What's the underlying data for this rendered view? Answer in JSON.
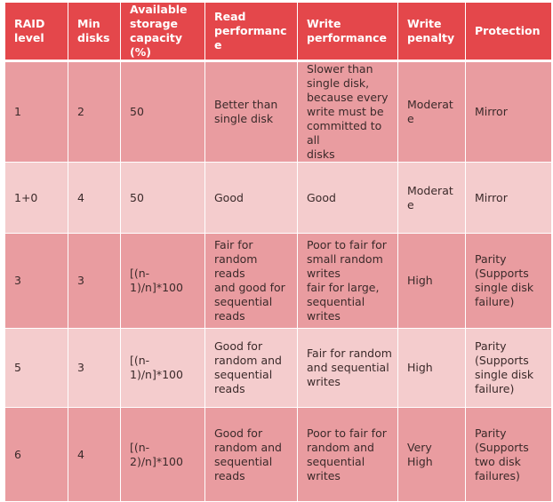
{
  "table": {
    "headers": [
      "RAID\nlevel",
      "Min\ndisks",
      "Available\nstorage\ncapacity (%)",
      "Read\nperformance",
      "Write\nperformance",
      "Write\npenalty",
      "Protection"
    ],
    "rows": [
      [
        "1",
        "2",
        "50",
        "Better than\nsingle disk",
        "Slower than\nsingle disk,\nbecause every\nwrite must be\ncommitted to all\ndisks",
        "Moderat\ne",
        "Mirror"
      ],
      [
        "1+0",
        "4",
        "50",
        "Good",
        "Good",
        "Moderat\ne",
        "Mirror"
      ],
      [
        "3",
        "3",
        "[(n-\n1)/n]*100",
        "Fair for\nrandom reads\nand  good for\nsequential\nreads",
        "Poor to fair for\nsmall random\nwrites\nfair for large,\nsequential\nwrites",
        "High",
        "Parity\n(Supports\nsingle disk\nfailure)"
      ],
      [
        "5",
        "3",
        "[(n-\n1)/n]*100",
        "Good for\nrandom  and\nsequential\nreads",
        "Fair for random\nand sequential\nwrites",
        "High",
        "Parity\n(Supports\nsingle disk\nfailure)"
      ],
      [
        "6",
        "4",
        "[(n-\n2)/n]*100",
        "Good for\nrandom and\nsequential\nreads",
        "Poor to fair for\nrandom and\nsequential\nwrites",
        "Very High",
        "Parity\n(Supports\ntwo disk\nfailures)"
      ]
    ]
  }
}
